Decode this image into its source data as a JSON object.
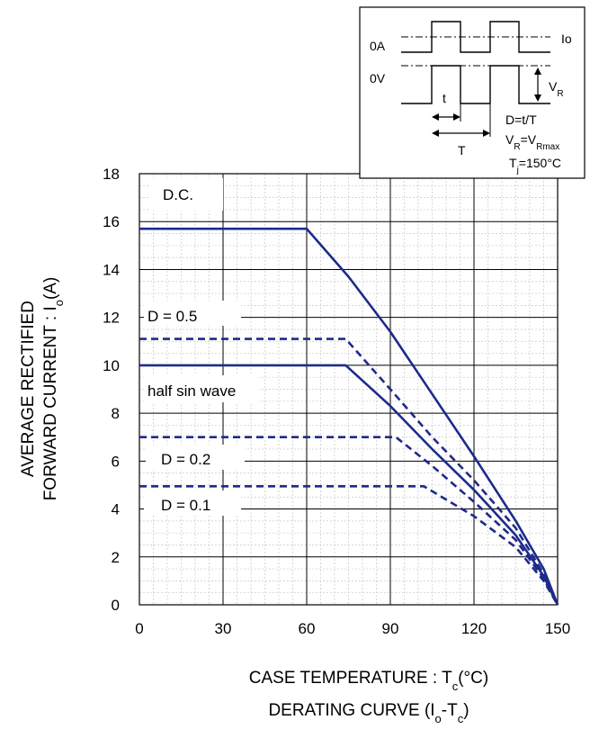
{
  "chart_data": {
    "type": "line",
    "title": "DERATING CURVE (Iₒ-Tᴄ)",
    "title_parts": {
      "main": "DERATING CURVE (I",
      "sub1": "o",
      "mid": "-T",
      "sub2": "c",
      "end": ")"
    },
    "xlabel": "CASE TEMPERATURE : Tᴄ(°C)",
    "xlabel_parts": {
      "main": "CASE TEMPERATURE : T",
      "sub": "c",
      "end": "(°C)"
    },
    "ylabel_line1": "AVERAGE RECTIFIED",
    "ylabel_line2_parts": {
      "main": "FORWARD CURRENT : I",
      "sub": "o",
      "end": "(A)"
    },
    "xlim": [
      0,
      150
    ],
    "ylim": [
      0,
      18
    ],
    "x_ticks": [
      0,
      30,
      60,
      90,
      120,
      150
    ],
    "y_ticks": [
      0,
      2,
      4,
      6,
      8,
      10,
      12,
      14,
      16,
      18
    ],
    "grid": true,
    "series": [
      {
        "name": "D.C.",
        "style": "solid",
        "x": [
          0,
          60,
          75,
          90,
          105,
          120,
          135,
          145,
          150
        ],
        "y": [
          15.7,
          15.7,
          13.7,
          11.4,
          8.8,
          6.2,
          3.5,
          1.5,
          0
        ]
      },
      {
        "name": "D = 0.5",
        "style": "dashed",
        "x": [
          0,
          74,
          90,
          105,
          120,
          135,
          145,
          150
        ],
        "y": [
          11.1,
          11.1,
          9.0,
          7.0,
          5.2,
          3.2,
          1.3,
          0
        ]
      },
      {
        "name": "half sin wave",
        "style": "solid",
        "x": [
          0,
          74,
          90,
          105,
          120,
          135,
          145,
          150
        ],
        "y": [
          10.0,
          10.0,
          8.3,
          6.5,
          4.8,
          2.9,
          1.2,
          0
        ]
      },
      {
        "name": "D = 0.2",
        "style": "dashed",
        "x": [
          0,
          92,
          105,
          120,
          135,
          145,
          150
        ],
        "y": [
          7.0,
          7.0,
          5.8,
          4.3,
          2.7,
          1.1,
          0
        ]
      },
      {
        "name": "D = 0.1",
        "style": "dashed",
        "x": [
          0,
          102,
          120,
          135,
          145,
          150
        ],
        "y": [
          4.95,
          4.95,
          3.7,
          2.4,
          1.0,
          0
        ]
      }
    ],
    "inset": {
      "io_label": "Io",
      "zero_a_label": "0A",
      "zero_v_label": "0V",
      "vr_label": "V",
      "vr_sub": "R",
      "t_label": "t",
      "T_label": "T",
      "duty_eq": "D=t/T",
      "vr_eq_main": "V",
      "vr_eq_sub1": "R",
      "vr_eq_mid": "=V",
      "vr_eq_sub2": "Rmax",
      "tj_main": "T",
      "tj_sub": "j",
      "tj_end": "=150°C"
    },
    "colors": {
      "line": "#1e2a8a",
      "grid_major": "#000000",
      "grid_minor": "#c8c8c8"
    }
  }
}
